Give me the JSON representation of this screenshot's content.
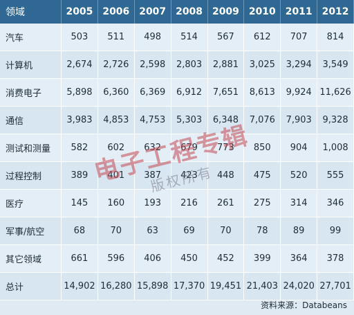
{
  "table": {
    "header_label": "领域",
    "years": [
      "2005",
      "2006",
      "2007",
      "2008",
      "2009",
      "2010",
      "2011",
      "2012"
    ],
    "rows": [
      {
        "label": "汽车",
        "values": [
          "503",
          "511",
          "498",
          "514",
          "567",
          "612",
          "707",
          "814"
        ]
      },
      {
        "label": "计算机",
        "values": [
          "2,674",
          "2,726",
          "2,598",
          "2,803",
          "2,881",
          "3,025",
          "3,294",
          "3,549"
        ]
      },
      {
        "label": "消费电子",
        "values": [
          "5,898",
          "6,360",
          "6,369",
          "6,912",
          "7,651",
          "8,613",
          "9,924",
          "11,626"
        ]
      },
      {
        "label": "通信",
        "values": [
          "3,983",
          "4,853",
          "4,753",
          "5,303",
          "6,348",
          "7,076",
          "7,903",
          "9,328"
        ]
      },
      {
        "label": "测试和测量",
        "values": [
          "582",
          "602",
          "632",
          "679",
          "773",
          "850",
          "904",
          "1,008"
        ]
      },
      {
        "label": "过程控制",
        "values": [
          "389",
          "401",
          "387",
          "423",
          "448",
          "475",
          "520",
          "555"
        ]
      },
      {
        "label": "医疗",
        "values": [
          "145",
          "160",
          "193",
          "216",
          "261",
          "275",
          "314",
          "346"
        ]
      },
      {
        "label": "军事/航空",
        "values": [
          "68",
          "70",
          "63",
          "69",
          "70",
          "78",
          "89",
          "99"
        ]
      },
      {
        "label": "其它领域",
        "values": [
          "661",
          "596",
          "406",
          "450",
          "452",
          "399",
          "364",
          "378"
        ]
      },
      {
        "label": "总计",
        "values": [
          "14,902",
          "16,280",
          "15,898",
          "17,370",
          "19,451",
          "21,403",
          "24,020",
          "27,701"
        ]
      }
    ]
  },
  "source": "资料来源：Databeans",
  "watermark": {
    "main": "电子工程专辑",
    "sub": "版权所有"
  }
}
